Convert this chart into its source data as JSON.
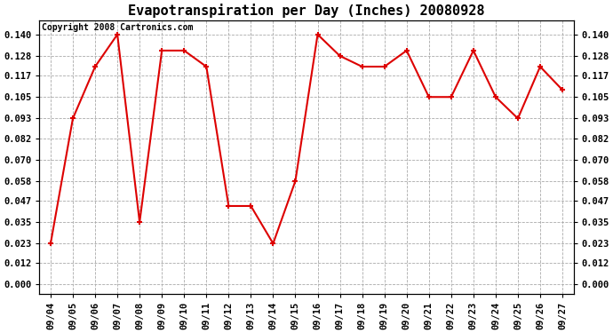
{
  "title": "Evapotranspiration per Day (Inches) 20080928",
  "copyright": "Copyright 2008 Cartronics.com",
  "dates": [
    "09/04",
    "09/05",
    "09/06",
    "09/07",
    "09/08",
    "09/09",
    "09/10",
    "09/11",
    "09/12",
    "09/13",
    "09/14",
    "09/15",
    "09/16",
    "09/17",
    "09/18",
    "09/19",
    "09/20",
    "09/21",
    "09/22",
    "09/23",
    "09/24",
    "09/25",
    "09/26",
    "09/27"
  ],
  "values": [
    0.023,
    0.093,
    0.122,
    0.14,
    0.035,
    0.131,
    0.131,
    0.122,
    0.044,
    0.044,
    0.023,
    0.058,
    0.14,
    0.128,
    0.122,
    0.122,
    0.131,
    0.105,
    0.105,
    0.131,
    0.105,
    0.093,
    0.122,
    0.109
  ],
  "line_color": "#dd0000",
  "marker_color": "#dd0000",
  "bg_color": "#ffffff",
  "plot_bg_color": "#ffffff",
  "grid_color": "#aaaaaa",
  "yticks": [
    0.0,
    0.012,
    0.023,
    0.035,
    0.047,
    0.058,
    0.07,
    0.082,
    0.093,
    0.105,
    0.117,
    0.128,
    0.14
  ],
  "ylim": [
    -0.005,
    0.148
  ],
  "title_fontsize": 11,
  "tick_fontsize": 7.5,
  "copyright_fontsize": 7
}
